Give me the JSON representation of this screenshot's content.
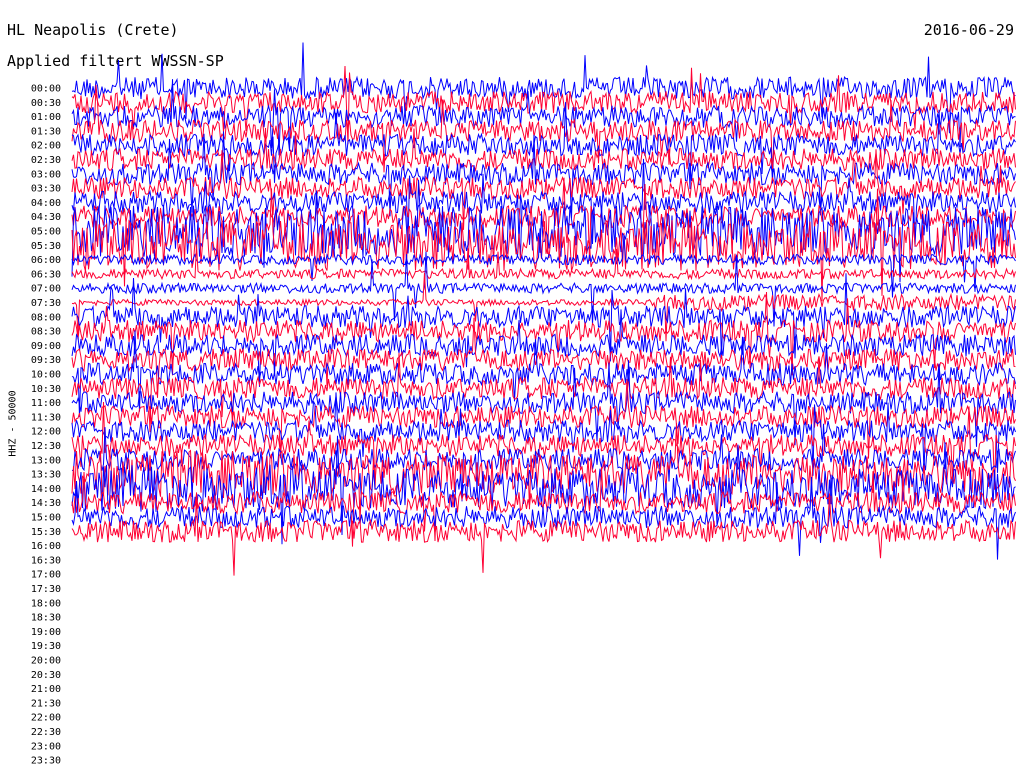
{
  "header": {
    "title": "HL Neapolis (Crete)",
    "filter": "Applied filtert WWSSN-SP",
    "date": "2016-06-29"
  },
  "side_label": "HHZ - 50000",
  "chart_data": {
    "type": "line",
    "title": "HL Neapolis (Crete)",
    "subtitle": "Applied filtert WWSSN-SP",
    "ylabel": "HHZ - 50000",
    "grid": false,
    "tick_labels": [
      "00:00",
      "00:30",
      "01:00",
      "01:30",
      "02:00",
      "02:30",
      "03:00",
      "03:30",
      "04:00",
      "04:30",
      "05:00",
      "05:30",
      "06:00",
      "06:30",
      "07:00",
      "07:30",
      "08:00",
      "08:30",
      "09:00",
      "09:30",
      "10:00",
      "10:30",
      "11:00",
      "11:30",
      "12:00",
      "12:30",
      "13:00",
      "13:30",
      "14:00",
      "14:30",
      "15:00",
      "15:30",
      "16:00",
      "16:30",
      "17:00",
      "17:30",
      "18:00",
      "18:30",
      "19:00",
      "19:30",
      "20:00",
      "20:30",
      "21:00",
      "21:30",
      "22:00",
      "22:30",
      "23:00",
      "23:30"
    ],
    "trace_colors": [
      "#0000ff",
      "#ff0033"
    ],
    "recorded_until_row": 31
  }
}
